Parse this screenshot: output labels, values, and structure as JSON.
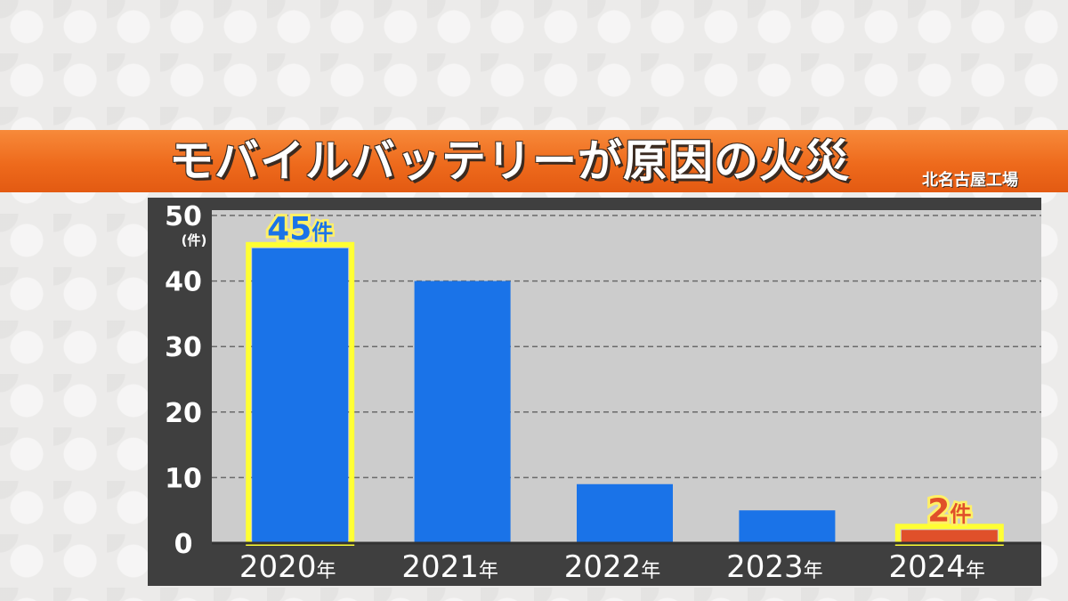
{
  "header": {
    "title": "モバイルバッテリーが原因の火災",
    "subtitle": "北名古屋工場"
  },
  "chart_data": {
    "type": "bar",
    "categories": [
      "2020年",
      "2021年",
      "2022年",
      "2023年",
      "2024年"
    ],
    "values": [
      45,
      40,
      9,
      5,
      2
    ],
    "ylim": [
      0,
      50
    ],
    "yticks": [
      0,
      10,
      20,
      30,
      40,
      50
    ],
    "ylabel": "(件)",
    "grid": true,
    "bar_colors": [
      "#1a73e8",
      "#1a73e8",
      "#1a73e8",
      "#1a73e8",
      "#e0502a"
    ],
    "highlight_color": "#ffff33",
    "annotations": [
      {
        "category": "2020年",
        "value": 45,
        "text": "45",
        "unit": "件"
      },
      {
        "category": "2024年",
        "value": 2,
        "text": "2",
        "unit": "件"
      }
    ]
  }
}
